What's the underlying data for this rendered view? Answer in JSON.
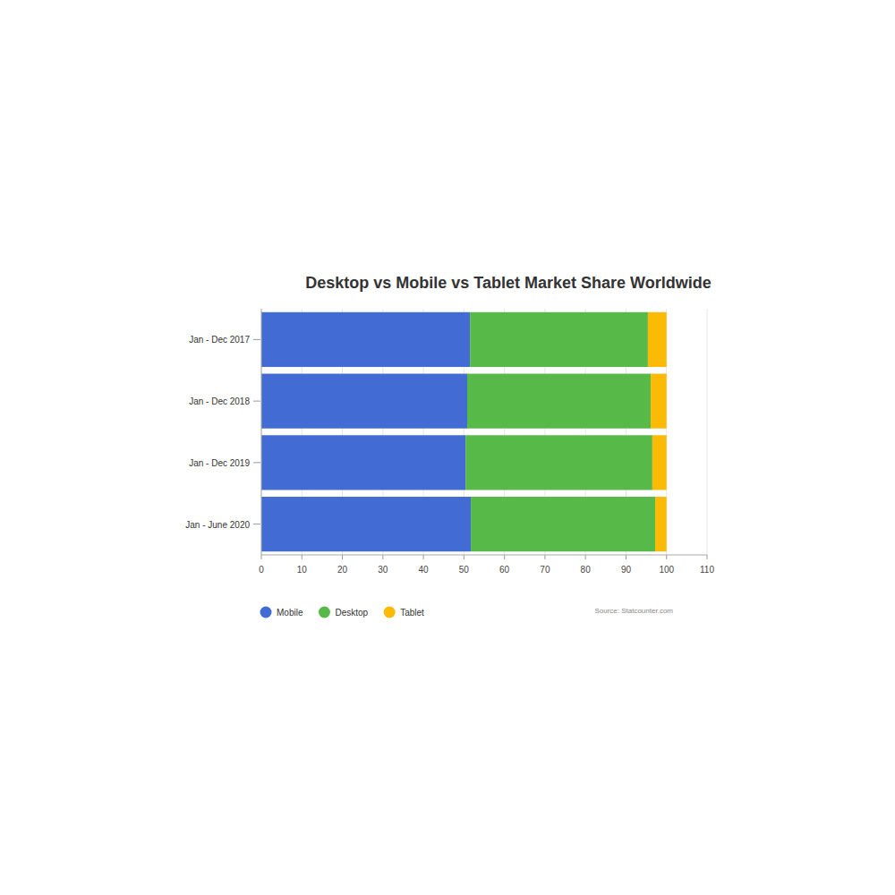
{
  "chart_data": {
    "type": "bar",
    "title": "Desktop vs Mobile vs Tablet Market Share Worldwide",
    "orientation": "horizontal",
    "stacked": true,
    "grid": true,
    "legend": "bottom",
    "categories": [
      "Jan - Dec 2017",
      "Jan - Dec 2018",
      "Jan - Dec 2019",
      "Jan - June 2020"
    ],
    "series": [
      {
        "name": "Mobile",
        "color": "#426cd3",
        "values": [
          51.5,
          50.8,
          50.4,
          51.7
        ]
      },
      {
        "name": "Desktop",
        "color": "#57b948",
        "values": [
          43.9,
          45.3,
          46.1,
          45.5
        ]
      },
      {
        "name": "Tablet",
        "color": "#fbba05",
        "values": [
          4.6,
          3.9,
          3.5,
          2.8
        ]
      }
    ],
    "xlim": [
      0,
      110
    ],
    "xticks": [
      0,
      10,
      20,
      30,
      40,
      50,
      60,
      70,
      80,
      90,
      100,
      110
    ],
    "source": "Source: Statcounter.com"
  }
}
